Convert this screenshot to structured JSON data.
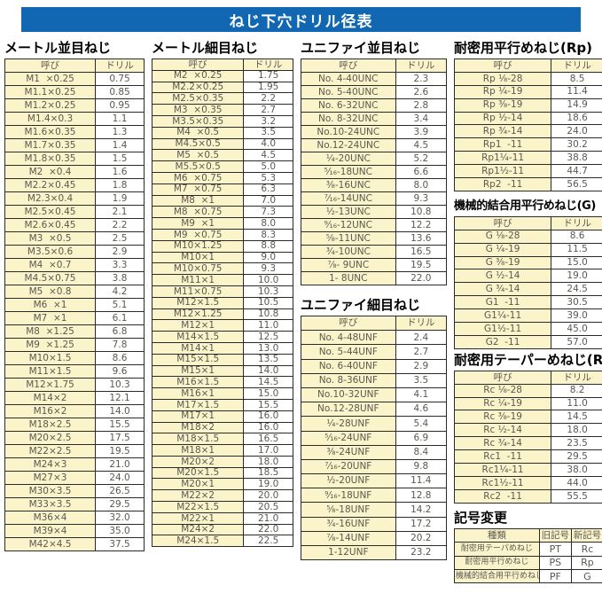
{
  "page_title": "ねじ下穴ドリル径表",
  "colors": {
    "title_bar_bg": "#1167b1",
    "cell_fill": "#fbf4cb",
    "table_text": "#5b5850",
    "border_col": "#2a2a2a"
  },
  "tables": [
    {
      "title": "メートル並目ねじ",
      "headers": [
        "呼び",
        "ドリル"
      ],
      "rows": [
        [
          "M1  ×0.25",
          "0.75"
        ],
        [
          "M1.1×0.25",
          "0.85"
        ],
        [
          "M1.2×0.25",
          "0.95"
        ],
        [
          "M1.4×0.3",
          "1.1"
        ],
        [
          "M1.6×0.35",
          "1.3"
        ],
        [
          "M1.7×0.35",
          "1.4"
        ],
        [
          "M1.8×0.35",
          "1.5"
        ],
        [
          "M2  ×0.4",
          "1.6"
        ],
        [
          "M2.2×0.45",
          "1.8"
        ],
        [
          "M2.3×0.4",
          "1.9"
        ],
        [
          "M2.5×0.45",
          "2.1"
        ],
        [
          "M2.6×0.45",
          "2.2"
        ],
        [
          "M3  ×0.5",
          "2.5"
        ],
        [
          "M3.5×0.6",
          "2.9"
        ],
        [
          "M4  ×0.7",
          "3.3"
        ],
        [
          "M4.5×0.75",
          "3.8"
        ],
        [
          "M5  ×0.8",
          "4.2"
        ],
        [
          "M6  ×1",
          "5.1"
        ],
        [
          "M7  ×1",
          "6.1"
        ],
        [
          "M8  ×1.25",
          "6.8"
        ],
        [
          "M9  ×1.25",
          "7.8"
        ],
        [
          "M10×1.5",
          "8.6"
        ],
        [
          "M11×1.5",
          "9.6"
        ],
        [
          "M12×1.75",
          "10.3"
        ],
        [
          "M14×2",
          "12.1"
        ],
        [
          "M16×2",
          "14.0"
        ],
        [
          "M18×2.5",
          "15.5"
        ],
        [
          "M20×2.5",
          "17.5"
        ],
        [
          "M22×2.5",
          "19.5"
        ],
        [
          "M24×3",
          "21.0"
        ],
        [
          "M27×3",
          "24.0"
        ],
        [
          "M30×3.5",
          "26.5"
        ],
        [
          "M33×3.5",
          "29.5"
        ],
        [
          "M36×4",
          "32.0"
        ],
        [
          "M39×4",
          "35.0"
        ],
        [
          "M42×4.5",
          "37.5"
        ]
      ]
    },
    {
      "title": "メートル細目ねじ",
      "headers": [
        "呼び",
        "ドリル"
      ],
      "rows": [
        [
          "M2  ×0.25",
          "1.75"
        ],
        [
          "M2.2×0.25",
          "1.95"
        ],
        [
          "M2.5×0.35",
          "2.2"
        ],
        [
          "M3  ×0.35",
          "2.7"
        ],
        [
          "M3.5×0.35",
          "3.2"
        ],
        [
          "M4  ×0.5",
          "3.5"
        ],
        [
          "M4.5×0.5",
          "4.0"
        ],
        [
          "M5  ×0.5",
          "4.5"
        ],
        [
          "M5.5×0.5",
          "5.0"
        ],
        [
          "M6  ×0.75",
          "5.3"
        ],
        [
          "M7  ×0.75",
          "6.3"
        ],
        [
          "M8  ×1",
          "7.0"
        ],
        [
          "M8  ×0.75",
          "7.3"
        ],
        [
          "M9  ×1",
          "8.0"
        ],
        [
          "M9  ×0.75",
          "8.3"
        ],
        [
          "M10×1.25",
          "8.8"
        ],
        [
          "M10×1",
          "9.0"
        ],
        [
          "M10×0.75",
          "9.3"
        ],
        [
          "M11×1",
          "10.0"
        ],
        [
          "M11×0.75",
          "10.3"
        ],
        [
          "M12×1.5",
          "10.5"
        ],
        [
          "M12×1.25",
          "10.8"
        ],
        [
          "M12×1",
          "11.0"
        ],
        [
          "M14×1.5",
          "12.5"
        ],
        [
          "M14×1",
          "13.0"
        ],
        [
          "M15×1.5",
          "13.5"
        ],
        [
          "M15×1",
          "14.0"
        ],
        [
          "M16×1.5",
          "14.5"
        ],
        [
          "M16×1",
          "15.0"
        ],
        [
          "M17×1.5",
          "15.5"
        ],
        [
          "M17×1",
          "16.0"
        ],
        [
          "M18×2",
          "16.0"
        ],
        [
          "M18×1.5",
          "16.5"
        ],
        [
          "M18×1",
          "17.0"
        ],
        [
          "M20×2",
          "18.0"
        ],
        [
          "M20×1.5",
          "18.5"
        ],
        [
          "M20×1",
          "19.0"
        ],
        [
          "M22×2",
          "20.0"
        ],
        [
          "M22×1.5",
          "20.5"
        ],
        [
          "M22×1",
          "21.0"
        ],
        [
          "M24×2",
          "22.0"
        ],
        [
          "M24×1.5",
          "22.5"
        ]
      ]
    },
    {
      "title": "ユニファイ並目ねじ",
      "headers": [
        "呼び",
        "ドリル"
      ],
      "rows": [
        [
          "No. 4-40UNC",
          "2.3"
        ],
        [
          "No. 5-40UNC",
          "2.6"
        ],
        [
          "No. 6-32UNC",
          "2.8"
        ],
        [
          "No. 8-32UNC",
          "3.4"
        ],
        [
          "No.10-24UNC",
          "3.9"
        ],
        [
          "No.12-24UNC",
          "4.5"
        ],
        [
          "¹⁄₄-20UNC",
          "5.2"
        ],
        [
          "⁵⁄₁₆-18UNC",
          "6.6"
        ],
        [
          "³⁄₈-16UNC",
          "8.0"
        ],
        [
          "⁷⁄₁₆-14UNC",
          "9.3"
        ],
        [
          "¹⁄₂-13UNC",
          "10.8"
        ],
        [
          "⁹⁄₁₆-12UNC",
          "12.2"
        ],
        [
          "⁵⁄₈-11UNC",
          "13.6"
        ],
        [
          "³⁄₄-10UNC",
          "16.5"
        ],
        [
          "⁷⁄₈- 9UNC",
          "19.5"
        ],
        [
          "1- 8UNC",
          "22.0"
        ]
      ]
    },
    {
      "title": "ユニファイ細目ねじ",
      "headers": [
        "呼び",
        "ドリル"
      ],
      "rows": [
        [
          "No. 4-48UNF",
          "2.4"
        ],
        [
          "No. 5-44UNF",
          "2.7"
        ],
        [
          "No. 6-40UNF",
          "2.9"
        ],
        [
          "No. 8-36UNF",
          "3.5"
        ],
        [
          "No.10-32UNF",
          "4.1"
        ],
        [
          "No.12-28UNF",
          "4.6"
        ],
        [
          "¹⁄₄-28UNF",
          "5.4"
        ],
        [
          "⁵⁄₁₆-24UNF",
          "6.9"
        ],
        [
          "³⁄₈-24UNF",
          "8.4"
        ],
        [
          "⁷⁄₁₆-20UNF",
          "9.8"
        ],
        [
          "¹⁄₂-20UNF",
          "11.4"
        ],
        [
          "⁹⁄₁₆-18UNF",
          "12.8"
        ],
        [
          "⁵⁄₈-18UNF",
          "14.2"
        ],
        [
          "³⁄₄-16UNF",
          "17.2"
        ],
        [
          "⁷⁄₈-14UNF",
          "20.2"
        ],
        [
          "1-12UNF",
          "23.2"
        ]
      ]
    },
    {
      "title": "耐密用平行めねじ(Rp)",
      "headers": [
        "呼び",
        "ドリル"
      ],
      "rows": [
        [
          "Rp ¹⁄₈-28",
          "8.5"
        ],
        [
          "Rp ¹⁄₄-19",
          "11.4"
        ],
        [
          "Rp ³⁄₈-19",
          "14.9"
        ],
        [
          "Rp ¹⁄₂-14",
          "18.6"
        ],
        [
          "Rp ³⁄₄-14",
          "24.0"
        ],
        [
          "Rp1  -11",
          "30.2"
        ],
        [
          "Rp1¹⁄₄-11",
          "38.8"
        ],
        [
          "Rp1¹⁄₂-11",
          "44.7"
        ],
        [
          "Rp2  -11",
          "56.5"
        ]
      ]
    },
    {
      "title": "機械的結合用平行めねじ(G)",
      "headers": [
        "呼び",
        "ドリル"
      ],
      "rows": [
        [
          "G ¹⁄₈-28",
          "8.6"
        ],
        [
          "G ¹⁄₄-19",
          "11.5"
        ],
        [
          "G ³⁄₈-19",
          "15.0"
        ],
        [
          "G ¹⁄₂-14",
          "19.0"
        ],
        [
          "G ³⁄₄-14",
          "24.5"
        ],
        [
          "G1  -11",
          "30.5"
        ],
        [
          "G1¹⁄₄-11",
          "39.0"
        ],
        [
          "G1¹⁄₂-11",
          "45.0"
        ],
        [
          "G2  -11",
          "57.0"
        ]
      ]
    },
    {
      "title": "耐密用テーパーめねじ(Rc)",
      "headers": [
        "呼び",
        "ドリル"
      ],
      "rows": [
        [
          "Rc ¹⁄₈-28",
          "8.2"
        ],
        [
          "Rc ¹⁄₄-19",
          "11.0"
        ],
        [
          "Rc ³⁄₈-19",
          "14.5"
        ],
        [
          "Rc ¹⁄₂-14",
          "18.0"
        ],
        [
          "Rc ³⁄₄-14",
          "23.5"
        ],
        [
          "Rc1  -11",
          "29.5"
        ],
        [
          "Rc1¹⁄₄-11",
          "38.0"
        ],
        [
          "Rc1¹⁄₂-11",
          "44.0"
        ],
        [
          "Rc2  -11",
          "55.5"
        ]
      ]
    },
    {
      "title": "記号変更",
      "headers": [
        "種類",
        "旧記号",
        "新記号"
      ],
      "rows": [
        [
          "耐密用テーパめねじ",
          "PT",
          "Rc"
        ],
        [
          "耐密用平行めねじ",
          "PS",
          "Rp"
        ],
        [
          "機械的結合用平行めねじ",
          "PF",
          "G"
        ]
      ]
    }
  ]
}
